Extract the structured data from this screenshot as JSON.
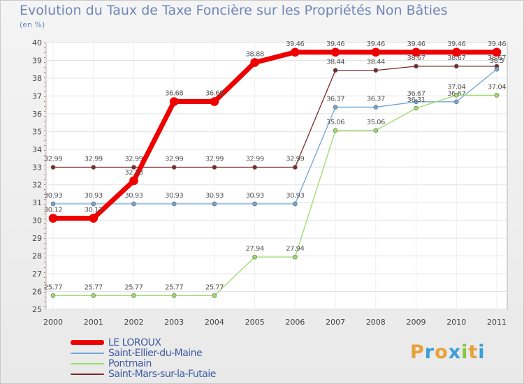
{
  "chart_data": {
    "type": "line",
    "title": "Evolution du Taux de Taxe Foncière sur les Propriétés Non Bâties",
    "unit_label": "(en %)",
    "x": [
      "2000",
      "2001",
      "2002",
      "2003",
      "2004",
      "2005",
      "2006",
      "2007",
      "2008",
      "2009",
      "2010",
      "2011"
    ],
    "ylim": [
      25,
      40
    ],
    "yticks": [
      25,
      26,
      27,
      28,
      29,
      30,
      31,
      32,
      33,
      34,
      35,
      36,
      37,
      38,
      39,
      40
    ],
    "grid": true,
    "series": [
      {
        "name": "Saint-Mars-sur-la-Futaie",
        "color": "#7a2a2a",
        "values": [
          32.99,
          32.99,
          32.99,
          32.99,
          32.99,
          32.99,
          32.99,
          38.44,
          38.44,
          38.67,
          38.67,
          38.67
        ],
        "labels": [
          "32.99",
          "32.99",
          "32.99",
          "32.99",
          "32.99",
          "32.99",
          "32.99",
          "38.44",
          "38.44",
          "38.67",
          "38.67",
          "38.67"
        ]
      },
      {
        "name": "Saint-Ellier-du-Maine",
        "color": "#6fa6d6",
        "values": [
          30.93,
          30.93,
          30.93,
          30.93,
          30.93,
          30.93,
          30.93,
          36.37,
          36.37,
          36.67,
          36.67,
          38.5
        ],
        "labels": [
          "30.93",
          "30.93",
          "30.93",
          "30.93",
          "30.93",
          "30.93",
          "30.93",
          "36.37",
          "36.37",
          "36.67",
          "36.67",
          "38.5"
        ]
      },
      {
        "name": "Pontmain",
        "color": "#9bdc6a",
        "values": [
          25.77,
          25.77,
          25.77,
          25.77,
          25.77,
          27.94,
          27.94,
          35.06,
          35.06,
          36.31,
          37.04,
          37.04
        ],
        "labels": [
          "25.77",
          "25.77",
          "25.77",
          "25.77",
          "25.77",
          "27.94",
          "27.94",
          "35.06",
          "35.06",
          "36.31",
          "37.04",
          "37.04"
        ]
      },
      {
        "name": "LE LOROUX",
        "color": "#ee0000",
        "values": [
          30.12,
          30.12,
          32.23,
          36.68,
          36.68,
          38.88,
          39.46,
          39.46,
          39.46,
          39.46,
          39.46,
          39.46
        ],
        "labels": [
          "30.12",
          "30.12",
          "32.23",
          "36.68",
          "36.68",
          "38.88",
          "39.46",
          "39.46",
          "39.46",
          "39.46",
          "39.46",
          "39.46"
        ]
      }
    ]
  },
  "legend": [
    {
      "name": "LE LOROUX",
      "color": "#ee0000"
    },
    {
      "name": "Saint-Ellier-du-Maine",
      "color": "#6fa6d6"
    },
    {
      "name": "Pontmain",
      "color": "#9bdc6a"
    },
    {
      "name": "Saint-Mars-sur-la-Futaie",
      "color": "#7a2a2a"
    }
  ],
  "logo": {
    "letters": [
      "P",
      "r",
      "o",
      "x",
      "i",
      "t",
      "i"
    ],
    "colors": [
      "#e8a13a",
      "#3aa0d8",
      "#e8a13a",
      "#3aa0d8",
      "#8ac440",
      "#e8a13a",
      "#3aa0d8"
    ]
  }
}
